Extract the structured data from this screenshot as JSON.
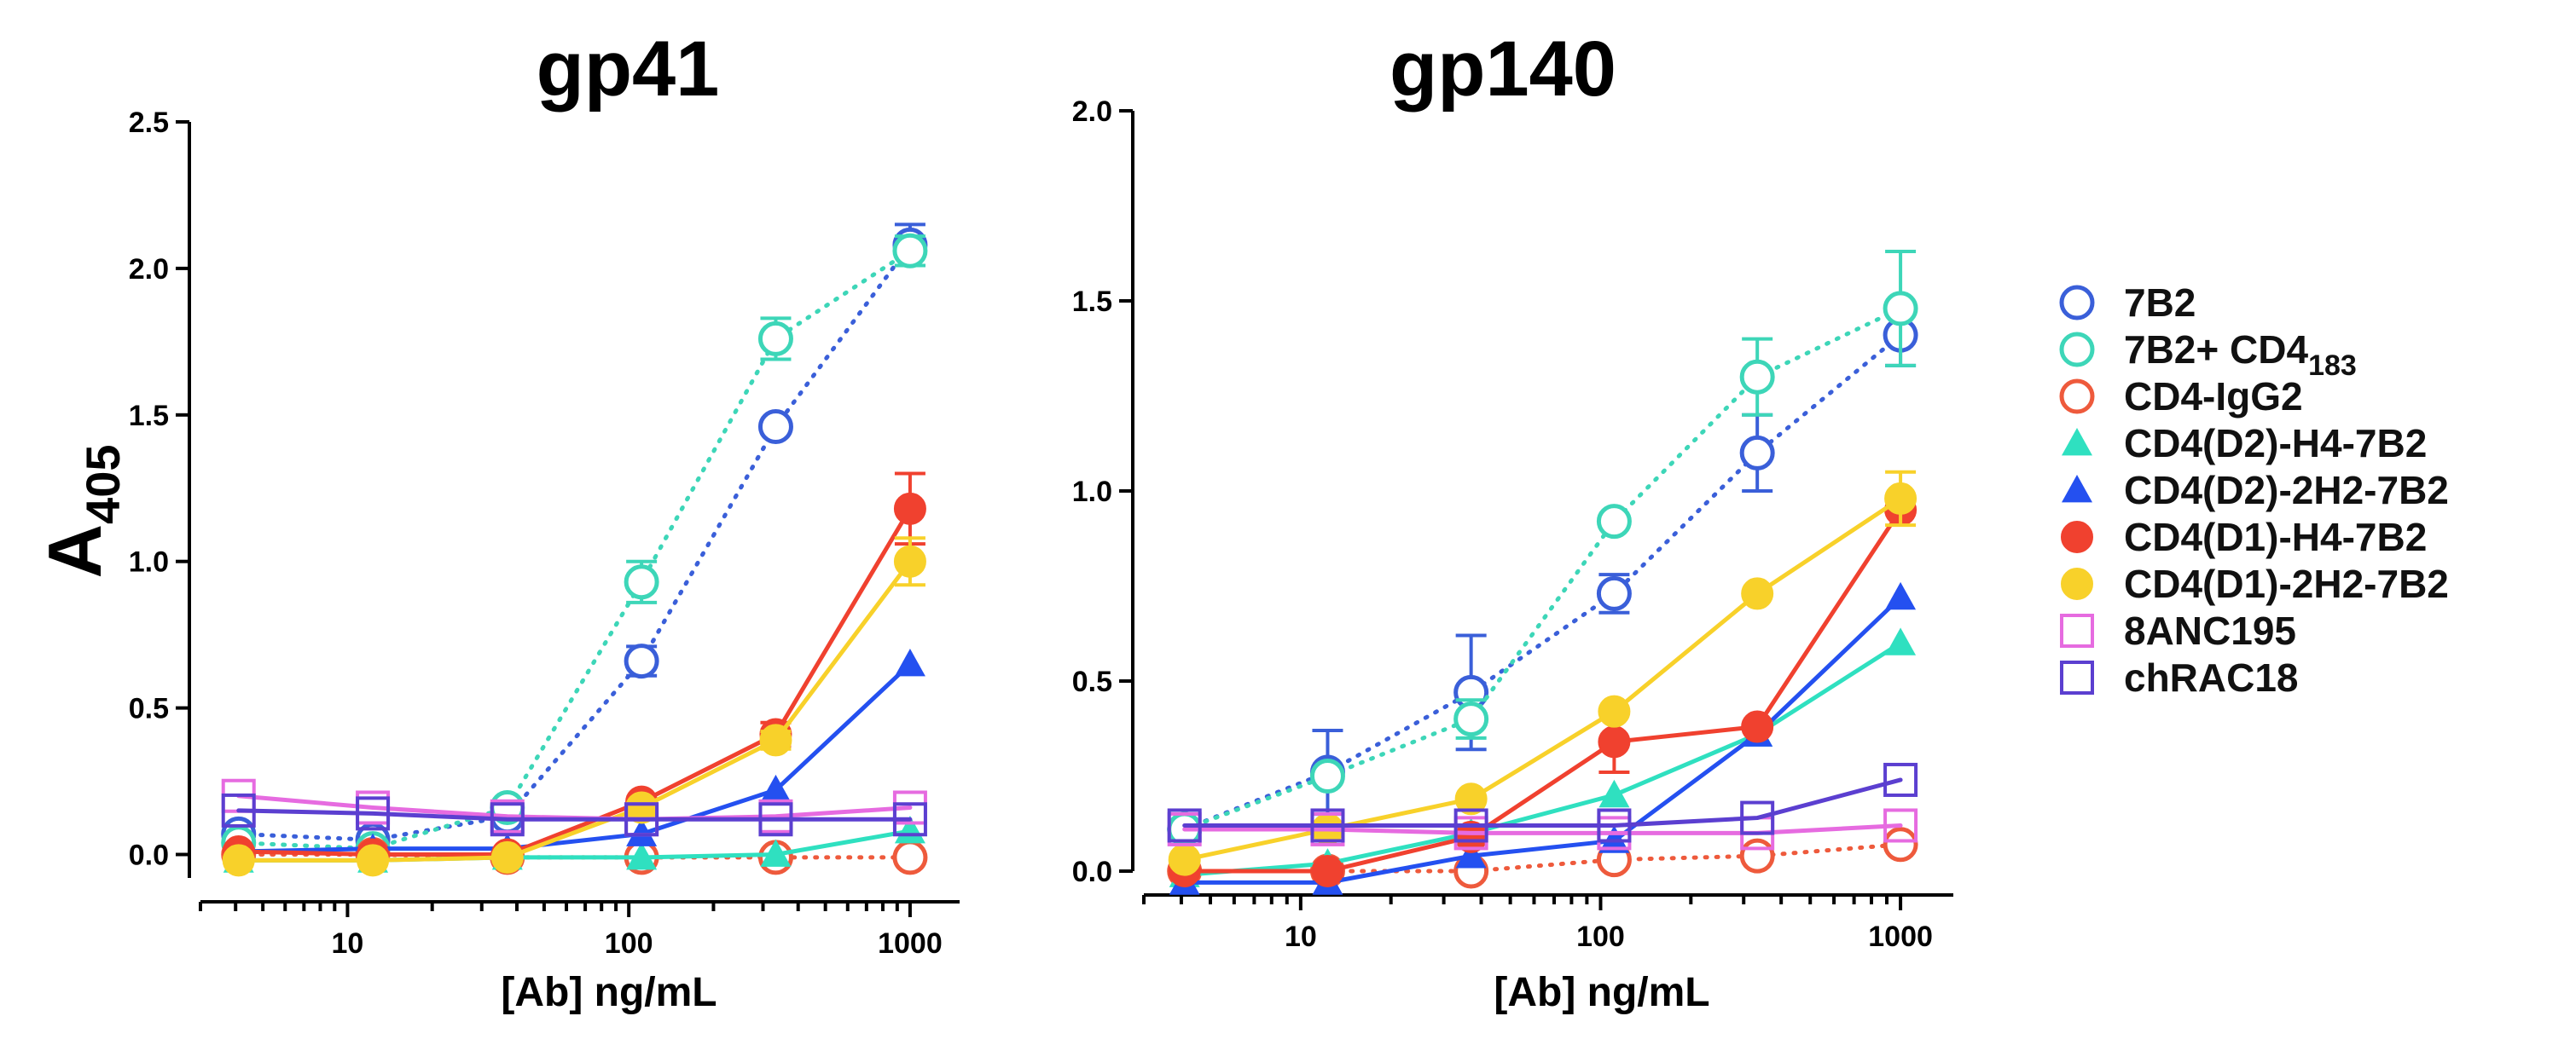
{
  "figure": {
    "ylabel_main": "A",
    "ylabel_sub": "405"
  },
  "legend": [
    {
      "label": "7B2",
      "sub": ""
    },
    {
      "label": "7B2+ CD4",
      "sub": "183"
    },
    {
      "label": "CD4-IgG2",
      "sub": ""
    },
    {
      "label": "CD4(D2)-H4-7B2",
      "sub": ""
    },
    {
      "label": "CD4(D2)-2H2-7B2",
      "sub": ""
    },
    {
      "label": "CD4(D1)-H4-7B2",
      "sub": ""
    },
    {
      "label": "CD4(D1)-2H2-7B2",
      "sub": ""
    },
    {
      "label": "8ANC195",
      "sub": ""
    },
    {
      "label": "chRAC18",
      "sub": ""
    }
  ],
  "series_styles": [
    {
      "name": "7B2",
      "color": "#3a5fd9",
      "marker": "open-circle",
      "dash": "dotted"
    },
    {
      "name": "7B2+ CD4183",
      "color": "#3dd6b8",
      "marker": "open-circle",
      "dash": "dotted"
    },
    {
      "name": "CD4-IgG2",
      "color": "#ee5a3c",
      "marker": "open-circle",
      "dash": "dotted"
    },
    {
      "name": "CD4(D2)-H4-7B2",
      "color": "#2fe0c0",
      "marker": "filled-triangle",
      "dash": "solid"
    },
    {
      "name": "CD4(D2)-2H2-7B2",
      "color": "#2450f0",
      "marker": "filled-triangle",
      "dash": "solid"
    },
    {
      "name": "CD4(D1)-H4-7B2",
      "color": "#f0412f",
      "marker": "filled-circle",
      "dash": "solid"
    },
    {
      "name": "CD4(D1)-2H2-7B2",
      "color": "#f8d12a",
      "marker": "filled-circle",
      "dash": "solid"
    },
    {
      "name": "8ANC195",
      "color": "#e66be0",
      "marker": "open-square",
      "dash": "solid"
    },
    {
      "name": "chRAC18",
      "color": "#5b3fd0",
      "marker": "open-square",
      "dash": "solid"
    }
  ],
  "chart_data": [
    {
      "type": "line",
      "title": "gp41",
      "xlabel": "[Ab] ng/mL",
      "ylabel": "A405",
      "xscale": "log",
      "xlim": [
        3,
        1500
      ],
      "ylim": [
        -0.08,
        2.5
      ],
      "xticks": [
        10,
        100,
        1000
      ],
      "xtick_labels": [
        "10",
        "100",
        "1000"
      ],
      "yticks": [
        0.0,
        0.5,
        1.0,
        1.5,
        2.0,
        2.5
      ],
      "ytick_labels": [
        "0.0",
        "0.5",
        "1.0",
        "1.5",
        "2.0",
        "2.5"
      ],
      "x": [
        4.1,
        12.3,
        37,
        111,
        333,
        1000
      ],
      "series": [
        {
          "name": "7B2",
          "values": [
            0.07,
            0.05,
            0.13,
            0.66,
            1.46,
            2.08
          ],
          "err": [
            0,
            0,
            0,
            0.05,
            0,
            0.07
          ]
        },
        {
          "name": "7B2+ CD4183",
          "values": [
            0.04,
            0.02,
            0.16,
            0.93,
            1.76,
            2.06
          ],
          "err": [
            0,
            0,
            0,
            0.07,
            0.07,
            0.05
          ]
        },
        {
          "name": "CD4-IgG2",
          "values": [
            0.0,
            0.0,
            -0.01,
            -0.01,
            -0.01,
            -0.01
          ],
          "err": [
            0,
            0,
            0,
            0,
            0,
            0
          ]
        },
        {
          "name": "CD4(D2)-H4-7B2",
          "values": [
            -0.02,
            -0.02,
            -0.01,
            -0.01,
            0.0,
            0.08
          ],
          "err": [
            0,
            0,
            0,
            0,
            0,
            0
          ]
        },
        {
          "name": "CD4(D2)-2H2-7B2",
          "values": [
            0.01,
            0.02,
            0.02,
            0.07,
            0.22,
            0.65
          ],
          "err": [
            0,
            0,
            0,
            0,
            0,
            0
          ]
        },
        {
          "name": "CD4(D1)-H4-7B2",
          "values": [
            0.01,
            0.0,
            0.0,
            0.18,
            0.41,
            1.18
          ],
          "err": [
            0,
            0,
            0,
            0,
            0.04,
            0.12
          ]
        },
        {
          "name": "CD4(D1)-2H2-7B2",
          "values": [
            -0.02,
            -0.02,
            -0.01,
            0.16,
            0.39,
            1.0
          ],
          "err": [
            0,
            0,
            0,
            0,
            0.03,
            0.08
          ]
        },
        {
          "name": "8ANC195",
          "values": [
            0.2,
            0.16,
            0.13,
            0.12,
            0.13,
            0.16
          ],
          "err": [
            0,
            0,
            0,
            0,
            0,
            0
          ]
        },
        {
          "name": "chRAC18",
          "values": [
            0.15,
            0.14,
            0.12,
            0.12,
            0.12,
            0.12
          ],
          "err": [
            0,
            0,
            0,
            0,
            0,
            0
          ]
        }
      ]
    },
    {
      "type": "line",
      "title": "gp140",
      "xlabel": "[Ab] ng/mL",
      "ylabel": "A405",
      "xscale": "log",
      "xlim": [
        3,
        1500
      ],
      "ylim": [
        0,
        2.0
      ],
      "xticks": [
        10,
        100,
        1000
      ],
      "xtick_labels": [
        "10",
        "100",
        "1000"
      ],
      "yticks": [
        0.0,
        0.5,
        1.0,
        1.5,
        2.0
      ],
      "ytick_labels": [
        "0.0",
        "0.5",
        "1.0",
        "1.5",
        "2.0"
      ],
      "x": [
        4.1,
        12.3,
        37,
        111,
        333,
        1000
      ],
      "series": [
        {
          "name": "7B2",
          "values": [
            0.11,
            0.26,
            0.47,
            0.73,
            1.1,
            1.41
          ],
          "err": [
            0,
            0.11,
            0.15,
            0.05,
            0.1,
            0.08
          ]
        },
        {
          "name": "7B2+ CD4183",
          "values": [
            0.11,
            0.25,
            0.4,
            0.92,
            1.3,
            1.48
          ],
          "err": [
            0,
            0,
            0.05,
            0,
            0.1,
            0.15
          ]
        },
        {
          "name": "CD4-IgG2",
          "values": [
            0.0,
            0.0,
            0.0,
            0.03,
            0.04,
            0.07
          ],
          "err": [
            0,
            0,
            0,
            0,
            0,
            0
          ]
        },
        {
          "name": "CD4(D2)-H4-7B2",
          "values": [
            -0.01,
            0.02,
            0.1,
            0.2,
            0.36,
            0.6
          ],
          "err": [
            0,
            0,
            0,
            0,
            0,
            0
          ]
        },
        {
          "name": "CD4(D2)-2H2-7B2",
          "values": [
            -0.03,
            -0.03,
            0.04,
            0.08,
            0.36,
            0.72
          ],
          "err": [
            0,
            0,
            0,
            0,
            0,
            0
          ]
        },
        {
          "name": "CD4(D1)-H4-7B2",
          "values": [
            0.0,
            0.0,
            0.09,
            0.34,
            0.38,
            0.95
          ],
          "err": [
            0,
            0,
            0,
            0.08,
            0,
            0
          ]
        },
        {
          "name": "CD4(D1)-2H2-7B2",
          "values": [
            0.03,
            0.11,
            0.19,
            0.42,
            0.73,
            0.98
          ],
          "err": [
            0,
            0,
            0,
            0,
            0,
            0.07
          ]
        },
        {
          "name": "8ANC195",
          "values": [
            0.11,
            0.11,
            0.1,
            0.1,
            0.1,
            0.12
          ],
          "err": [
            0,
            0,
            0,
            0,
            0,
            0
          ]
        },
        {
          "name": "chRAC18",
          "values": [
            0.12,
            0.12,
            0.12,
            0.12,
            0.14,
            0.24
          ],
          "err": [
            0,
            0,
            0,
            0,
            0,
            0
          ]
        }
      ]
    }
  ]
}
